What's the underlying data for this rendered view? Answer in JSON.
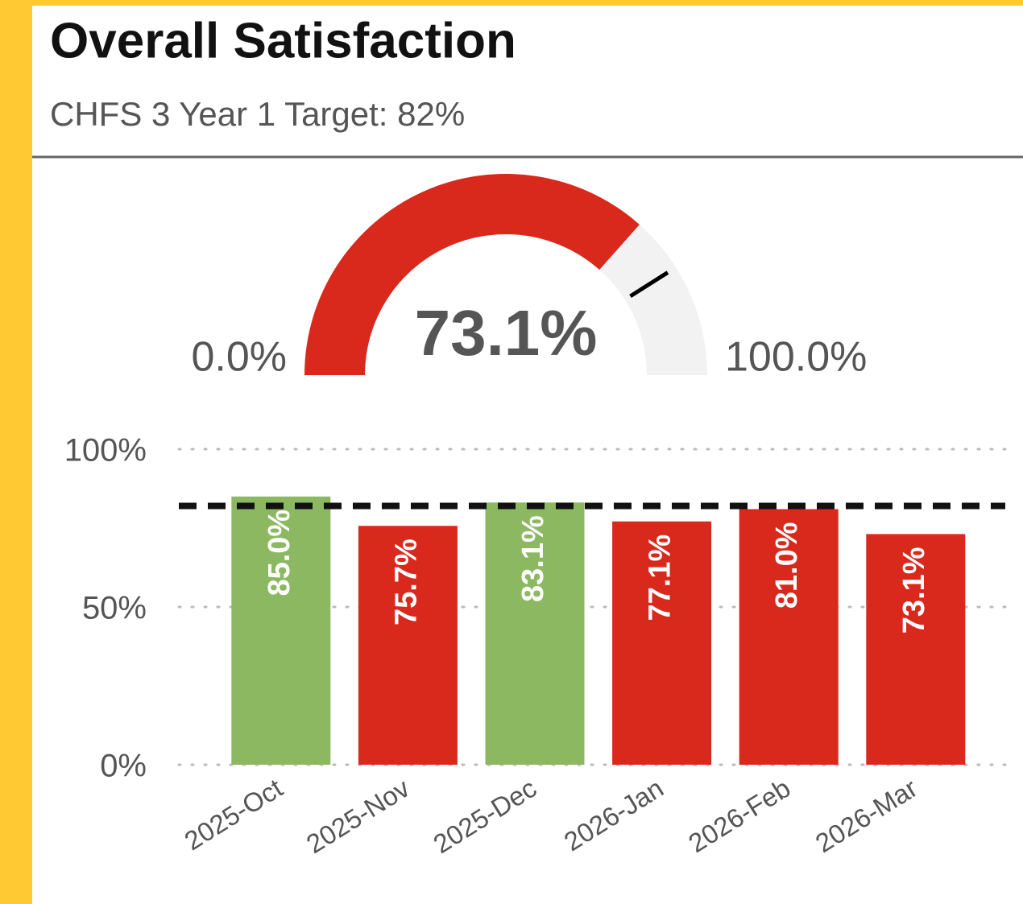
{
  "header": {
    "title": "Overall Satisfaction",
    "subtitle": "CHFS 3 Year 1 Target: 82%"
  },
  "chart_data": [
    {
      "type": "gauge",
      "value": 73.1,
      "value_label": "73.1%",
      "target": 82,
      "ylim": [
        0,
        100
      ],
      "ticks": [
        {
          "value": 0,
          "label": "0.0%"
        },
        {
          "value": 100,
          "label": "100.0%"
        }
      ],
      "color": "#d9291c",
      "track_color": "#f2f2f2"
    },
    {
      "type": "bar",
      "categories": [
        "2025-Oct",
        "2025-Nov",
        "2025-Dec",
        "2026-Jan",
        "2026-Feb",
        "2026-Mar"
      ],
      "values": [
        85.0,
        75.7,
        83.1,
        77.1,
        81.0,
        73.1
      ],
      "value_labels": [
        "85.0%",
        "75.7%",
        "83.1%",
        "77.1%",
        "81.0%",
        "73.1%"
      ],
      "colors": [
        "#8cb862",
        "#d9291c",
        "#8cb862",
        "#d9291c",
        "#d9291c",
        "#d9291c"
      ],
      "target": 82,
      "ylim": [
        0,
        100
      ],
      "yticks": [
        {
          "value": 0,
          "label": "0%"
        },
        {
          "value": 50,
          "label": "50%"
        },
        {
          "value": 100,
          "label": "100%"
        }
      ],
      "grid": true
    }
  ]
}
